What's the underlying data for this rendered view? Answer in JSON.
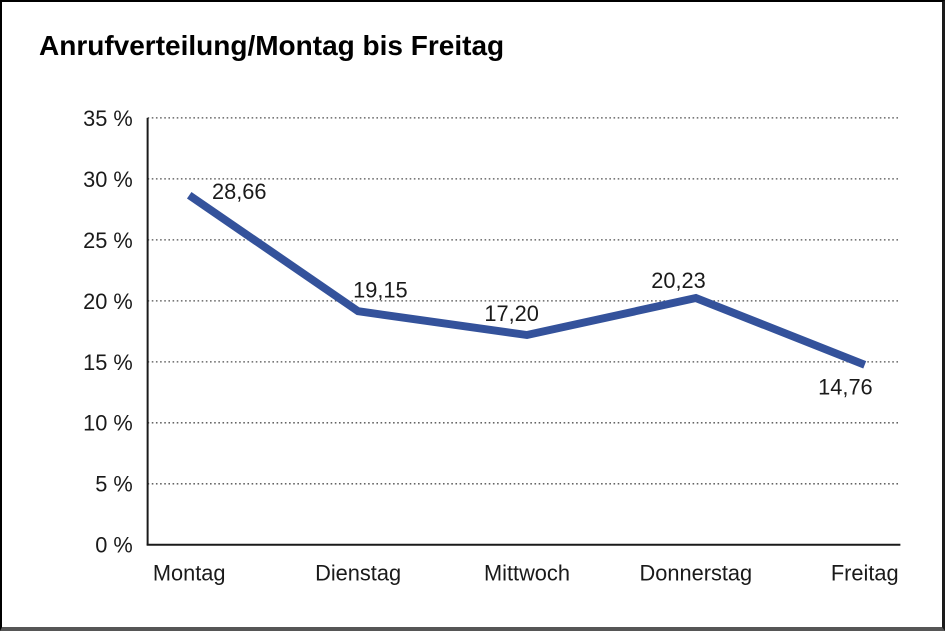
{
  "window": {
    "background": "#ffffff",
    "frame_border_color": "#000000"
  },
  "chart_data": {
    "type": "line",
    "title": "Anrufverteilung/Montag bis Freitag",
    "categories": [
      "Montag",
      "Dienstag",
      "Mittwoch",
      "Donnerstag",
      "Freitag"
    ],
    "series": [
      {
        "name": "Anrufverteilung",
        "values": [
          28.66,
          19.15,
          17.2,
          20.23,
          14.76
        ]
      }
    ],
    "data_labels": [
      "28,66",
      "19,15",
      "17,20",
      "20,23",
      "14,76"
    ],
    "xlabel": "",
    "ylabel": "",
    "ylim": [
      0,
      35
    ],
    "ytick_step": 5,
    "ytick_labels": [
      "0 %",
      "5 %",
      "10 %",
      "15 %",
      "20 %",
      "25 %",
      "30 %",
      "35 %"
    ],
    "grid": "horizontal-dotted",
    "legend_position": "none",
    "line_color": "#34529B",
    "axis_color": "#1a1a1a",
    "gridline_color": "#4d4d4d",
    "label_color": "#1a1a1a"
  }
}
